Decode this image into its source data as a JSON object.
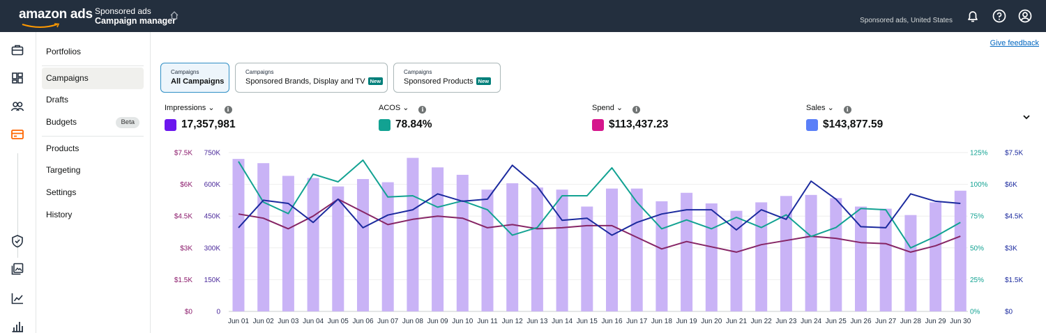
{
  "topbar": {
    "logo": "amazon ads",
    "crumb_top": "Sponsored ads",
    "crumb_main": "Campaign manager",
    "account": "Sponsored ads, United States",
    "icons": [
      "bell-icon",
      "help-icon",
      "account-icon"
    ]
  },
  "rail": {
    "icons": [
      "briefcase-icon",
      "dashboard-icon",
      "audience-icon",
      "card-icon",
      "shield-icon",
      "media-icon",
      "trend-icon",
      "bar-chart-icon"
    ],
    "active_color": "#ff6600"
  },
  "sidebar": {
    "items": [
      {
        "label": "Portfolios"
      },
      {
        "label": "Campaigns"
      },
      {
        "label": "Drafts"
      },
      {
        "label": "Budgets",
        "badge": "Beta"
      },
      {
        "label": "Products"
      },
      {
        "label": "Targeting"
      },
      {
        "label": "Settings"
      },
      {
        "label": "History"
      }
    ]
  },
  "feedback": "Give feedback",
  "tabs": [
    {
      "small": "Campaigns",
      "big": "All Campaigns",
      "selected": true
    },
    {
      "small": "Campaigns",
      "big": "Sponsored Brands, Display and TV",
      "badge": "New"
    },
    {
      "small": "Campaigns",
      "big": "Sponsored Products",
      "badge": "New"
    }
  ],
  "metrics": [
    {
      "label": "Impressions",
      "value": "17,357,981",
      "color": "#6b16ee"
    },
    {
      "label": "ACOS",
      "value": "78.84%",
      "color": "#12a292"
    },
    {
      "label": "Spend",
      "value": "$113,437.23",
      "color": "#d5168c"
    },
    {
      "label": "Sales",
      "value": "$143,877.59",
      "color": "#5a7ff8"
    }
  ],
  "chart_data": {
    "type": "bar",
    "categories": [
      "Jun 01",
      "Jun 02",
      "Jun 03",
      "Jun 04",
      "Jun 05",
      "Jun 06",
      "Jun 07",
      "Jun 08",
      "Jun 09",
      "Jun 10",
      "Jun 11",
      "Jun 12",
      "Jun 13",
      "Jun 14",
      "Jun 15",
      "Jun 16",
      "Jun 17",
      "Jun 18",
      "Jun 19",
      "Jun 20",
      "Jun 21",
      "Jun 22",
      "Jun 23",
      "Jun 24",
      "Jun 25",
      "Jun 26",
      "Jun 27",
      "Jun 28",
      "Jun 29",
      "Jun 30"
    ],
    "axes": {
      "left_spend": {
        "ticks": [
          "$0",
          "$1.5K",
          "$3K",
          "$4.5K",
          "$6K",
          "$7.5K"
        ],
        "color": "#8b1a6b"
      },
      "left_impressions": {
        "ticks": [
          "0",
          "150K",
          "300K",
          "450K",
          "600K",
          "750K"
        ],
        "color": "#4b2a9b"
      },
      "right_acos": {
        "ticks": [
          "0%",
          "25%",
          "50%",
          "75%",
          "100%",
          "125%"
        ],
        "color": "#12a292"
      },
      "right_sales": {
        "ticks": [
          "$0",
          "$1.5K",
          "$3K",
          "$4.5K",
          "$6K",
          "$7.5K"
        ],
        "color": "#1b2a9e"
      }
    },
    "series": [
      {
        "name": "Impressions",
        "kind": "bar",
        "color": "#c9b3f6",
        "axis": "left_impressions",
        "values": [
          720,
          700,
          640,
          630,
          590,
          625,
          610,
          725,
          680,
          645,
          575,
          605,
          585,
          575,
          495,
          580,
          580,
          520,
          560,
          510,
          475,
          515,
          545,
          550,
          535,
          495,
          485,
          455,
          515,
          570
        ]
      },
      {
        "name": "Spend",
        "kind": "line",
        "color": "#862565",
        "axis": "left_spend",
        "values": [
          4600,
          4400,
          3900,
          4500,
          5300,
          4700,
          4100,
          4350,
          4500,
          4400,
          3950,
          4100,
          3900,
          3950,
          4050,
          4050,
          3500,
          2950,
          3300,
          3050,
          2800,
          3150,
          3350,
          3550,
          3450,
          3250,
          3200,
          2800,
          3100,
          3550
        ]
      },
      {
        "name": "ACOS",
        "kind": "line",
        "color": "#12a292",
        "axis": "right_acos",
        "values": [
          118,
          86,
          77,
          108,
          102,
          119,
          90,
          91,
          82,
          87,
          80,
          60,
          66,
          91,
          91,
          113,
          86,
          65,
          72,
          65,
          74,
          66,
          76,
          59,
          66,
          81,
          80,
          50,
          59,
          70
        ]
      },
      {
        "name": "Sales",
        "kind": "line",
        "color": "#1b2a9e",
        "axis": "right_sales",
        "values": [
          3950,
          5250,
          5100,
          4200,
          5300,
          3950,
          4550,
          4800,
          5550,
          5200,
          5300,
          6900,
          5900,
          4300,
          4400,
          3600,
          4200,
          4600,
          4800,
          4800,
          3850,
          4800,
          4350,
          6150,
          5300,
          4000,
          3950,
          5550,
          5200,
          5100
        ]
      }
    ],
    "grid": true,
    "ylim": [
      0,
      7500
    ]
  }
}
